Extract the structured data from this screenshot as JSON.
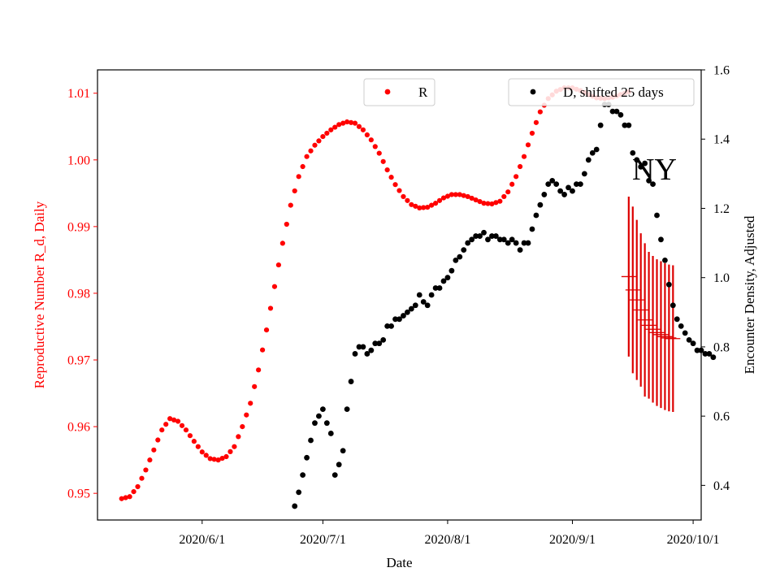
{
  "chart_data": {
    "type": "scatter",
    "annotation": "NY",
    "xlabel": "Date",
    "x_ticks": [
      "2020/6/1",
      "2020/7/1",
      "2020/8/1",
      "2020/9/1",
      "2020/10/1"
    ],
    "xlim": [
      "2020-05-06",
      "2020-10-03"
    ],
    "y_left": {
      "label": "Reproductive Number R_d, Daily",
      "color": "#ff0000",
      "ylim": [
        0.946,
        1.0135
      ],
      "ticks": [
        "0.95",
        "0.96",
        "0.97",
        "0.98",
        "0.99",
        "1.00",
        "1.01"
      ]
    },
    "y_right": {
      "label": "Encounter Density, Adjusted",
      "color": "#000000",
      "ylim": [
        0.3,
        1.6
      ],
      "ticks": [
        "0.4",
        "0.6",
        "0.8",
        "1.0",
        "1.2",
        "1.4",
        "1.6"
      ]
    },
    "legend": {
      "R": {
        "label": "R",
        "position": "top-center"
      },
      "D": {
        "label": "D, shifted 25 days",
        "position": "top-right"
      }
    },
    "colors": {
      "R": "#ff0000",
      "D": "#000000",
      "error": "#dd0000"
    },
    "series_R": {
      "name": "R",
      "axis": "left",
      "start_date": "2020-05-12",
      "end_date": "2020-09-15",
      "control_points": [
        [
          "2020-05-12",
          0.9492
        ],
        [
          "2020-05-14",
          0.9495
        ],
        [
          "2020-05-16",
          0.951
        ],
        [
          "2020-05-18",
          0.9535
        ],
        [
          "2020-05-20",
          0.9565
        ],
        [
          "2020-05-22",
          0.9595
        ],
        [
          "2020-05-24",
          0.9612
        ],
        [
          "2020-05-26",
          0.9608
        ],
        [
          "2020-05-28",
          0.9595
        ],
        [
          "2020-05-30",
          0.9578
        ],
        [
          "2020-06-01",
          0.9562
        ],
        [
          "2020-06-03",
          0.9552
        ],
        [
          "2020-06-05",
          0.955
        ],
        [
          "2020-06-07",
          0.9555
        ],
        [
          "2020-06-09",
          0.957
        ],
        [
          "2020-06-11",
          0.96
        ],
        [
          "2020-06-13",
          0.9635
        ],
        [
          "2020-06-15",
          0.9685
        ],
        [
          "2020-06-17",
          0.9745
        ],
        [
          "2020-06-19",
          0.981
        ],
        [
          "2020-06-21",
          0.9875
        ],
        [
          "2020-06-23",
          0.9932
        ],
        [
          "2020-06-25",
          0.9975
        ],
        [
          "2020-06-27",
          1.0005
        ],
        [
          "2020-06-29",
          1.0022
        ],
        [
          "2020-07-01",
          1.0035
        ],
        [
          "2020-07-03",
          1.0045
        ],
        [
          "2020-07-05",
          1.0053
        ],
        [
          "2020-07-07",
          1.0057
        ],
        [
          "2020-07-09",
          1.0055
        ],
        [
          "2020-07-11",
          1.0045
        ],
        [
          "2020-07-13",
          1.003
        ],
        [
          "2020-07-15",
          1.001
        ],
        [
          "2020-07-17",
          0.9985
        ],
        [
          "2020-07-19",
          0.9963
        ],
        [
          "2020-07-21",
          0.9945
        ],
        [
          "2020-07-23",
          0.9933
        ],
        [
          "2020-07-25",
          0.9928
        ],
        [
          "2020-07-27",
          0.9929
        ],
        [
          "2020-07-29",
          0.9935
        ],
        [
          "2020-07-31",
          0.9943
        ],
        [
          "2020-08-02",
          0.9948
        ],
        [
          "2020-08-04",
          0.9948
        ],
        [
          "2020-08-06",
          0.9945
        ],
        [
          "2020-08-08",
          0.994
        ],
        [
          "2020-08-10",
          0.9935
        ],
        [
          "2020-08-12",
          0.9934
        ],
        [
          "2020-08-14",
          0.9938
        ],
        [
          "2020-08-16",
          0.9952
        ],
        [
          "2020-08-18",
          0.9975
        ],
        [
          "2020-08-20",
          1.0005
        ],
        [
          "2020-08-22",
          1.004
        ],
        [
          "2020-08-24",
          1.0072
        ],
        [
          "2020-08-26",
          1.0092
        ],
        [
          "2020-08-28",
          1.0103
        ],
        [
          "2020-08-30",
          1.0108
        ],
        [
          "2020-09-01",
          1.0108
        ],
        [
          "2020-09-03",
          1.0104
        ],
        [
          "2020-09-05",
          1.0098
        ],
        [
          "2020-09-07",
          1.0093
        ],
        [
          "2020-09-09",
          1.0092
        ],
        [
          "2020-09-11",
          1.0094
        ],
        [
          "2020-09-13",
          1.0098
        ],
        [
          "2020-09-15",
          1.0102
        ]
      ]
    },
    "series_D": {
      "name": "D, shifted 25 days",
      "axis": "right",
      "points": [
        [
          "2020-06-24",
          0.34
        ],
        [
          "2020-06-25",
          0.38
        ],
        [
          "2020-06-26",
          0.43
        ],
        [
          "2020-06-27",
          0.48
        ],
        [
          "2020-06-28",
          0.53
        ],
        [
          "2020-06-29",
          0.58
        ],
        [
          "2020-06-30",
          0.6
        ],
        [
          "2020-07-01",
          0.62
        ],
        [
          "2020-07-02",
          0.58
        ],
        [
          "2020-07-03",
          0.55
        ],
        [
          "2020-07-04",
          0.43
        ],
        [
          "2020-07-05",
          0.46
        ],
        [
          "2020-07-06",
          0.5
        ],
        [
          "2020-07-07",
          0.62
        ],
        [
          "2020-07-08",
          0.7
        ],
        [
          "2020-07-09",
          0.78
        ],
        [
          "2020-07-10",
          0.8
        ],
        [
          "2020-07-11",
          0.8
        ],
        [
          "2020-07-12",
          0.78
        ],
        [
          "2020-07-13",
          0.79
        ],
        [
          "2020-07-14",
          0.81
        ],
        [
          "2020-07-15",
          0.81
        ],
        [
          "2020-07-16",
          0.82
        ],
        [
          "2020-07-17",
          0.86
        ],
        [
          "2020-07-18",
          0.86
        ],
        [
          "2020-07-19",
          0.88
        ],
        [
          "2020-07-20",
          0.88
        ],
        [
          "2020-07-21",
          0.89
        ],
        [
          "2020-07-22",
          0.9
        ],
        [
          "2020-07-23",
          0.91
        ],
        [
          "2020-07-24",
          0.92
        ],
        [
          "2020-07-25",
          0.95
        ],
        [
          "2020-07-26",
          0.93
        ],
        [
          "2020-07-27",
          0.92
        ],
        [
          "2020-07-28",
          0.95
        ],
        [
          "2020-07-29",
          0.97
        ],
        [
          "2020-07-30",
          0.97
        ],
        [
          "2020-07-31",
          0.99
        ],
        [
          "2020-08-01",
          1.0
        ],
        [
          "2020-08-02",
          1.02
        ],
        [
          "2020-08-03",
          1.05
        ],
        [
          "2020-08-04",
          1.06
        ],
        [
          "2020-08-05",
          1.08
        ],
        [
          "2020-08-06",
          1.1
        ],
        [
          "2020-08-07",
          1.11
        ],
        [
          "2020-08-08",
          1.12
        ],
        [
          "2020-08-09",
          1.12
        ],
        [
          "2020-08-10",
          1.13
        ],
        [
          "2020-08-11",
          1.11
        ],
        [
          "2020-08-12",
          1.12
        ],
        [
          "2020-08-13",
          1.12
        ],
        [
          "2020-08-14",
          1.11
        ],
        [
          "2020-08-15",
          1.11
        ],
        [
          "2020-08-16",
          1.1
        ],
        [
          "2020-08-17",
          1.11
        ],
        [
          "2020-08-18",
          1.1
        ],
        [
          "2020-08-19",
          1.08
        ],
        [
          "2020-08-20",
          1.1
        ],
        [
          "2020-08-21",
          1.1
        ],
        [
          "2020-08-22",
          1.14
        ],
        [
          "2020-08-23",
          1.18
        ],
        [
          "2020-08-24",
          1.21
        ],
        [
          "2020-08-25",
          1.24
        ],
        [
          "2020-08-26",
          1.27
        ],
        [
          "2020-08-27",
          1.28
        ],
        [
          "2020-08-28",
          1.27
        ],
        [
          "2020-08-29",
          1.25
        ],
        [
          "2020-08-30",
          1.24
        ],
        [
          "2020-08-31",
          1.26
        ],
        [
          "2020-09-01",
          1.25
        ],
        [
          "2020-09-02",
          1.27
        ],
        [
          "2020-09-03",
          1.27
        ],
        [
          "2020-09-04",
          1.3
        ],
        [
          "2020-09-05",
          1.34
        ],
        [
          "2020-09-06",
          1.36
        ],
        [
          "2020-09-07",
          1.37
        ],
        [
          "2020-09-08",
          1.44
        ],
        [
          "2020-09-09",
          1.5
        ],
        [
          "2020-09-10",
          1.5
        ],
        [
          "2020-09-11",
          1.48
        ],
        [
          "2020-09-12",
          1.48
        ],
        [
          "2020-09-13",
          1.47
        ],
        [
          "2020-09-14",
          1.44
        ],
        [
          "2020-09-15",
          1.44
        ],
        [
          "2020-09-16",
          1.36
        ],
        [
          "2020-09-17",
          1.34
        ],
        [
          "2020-09-18",
          1.32
        ],
        [
          "2020-09-19",
          1.33
        ],
        [
          "2020-09-20",
          1.28
        ],
        [
          "2020-09-21",
          1.27
        ],
        [
          "2020-09-22",
          1.18
        ],
        [
          "2020-09-23",
          1.11
        ],
        [
          "2020-09-24",
          1.05
        ],
        [
          "2020-09-25",
          0.98
        ],
        [
          "2020-09-26",
          0.92
        ],
        [
          "2020-09-27",
          0.88
        ],
        [
          "2020-09-28",
          0.86
        ],
        [
          "2020-09-29",
          0.84
        ],
        [
          "2020-09-30",
          0.82
        ],
        [
          "2020-10-01",
          0.81
        ],
        [
          "2020-10-02",
          0.79
        ],
        [
          "2020-10-03",
          0.79
        ],
        [
          "2020-10-04",
          0.78
        ],
        [
          "2020-10-05",
          0.78
        ],
        [
          "2020-10-06",
          0.77
        ]
      ]
    },
    "error_bars": {
      "axis": "left",
      "points": [
        [
          "2020-09-15",
          0.9825,
          0.012
        ],
        [
          "2020-09-16",
          0.9805,
          0.0125
        ],
        [
          "2020-09-17",
          0.979,
          0.012
        ],
        [
          "2020-09-18",
          0.9775,
          0.0115
        ],
        [
          "2020-09-19",
          0.976,
          0.0115
        ],
        [
          "2020-09-20",
          0.9752,
          0.011
        ],
        [
          "2020-09-21",
          0.9746,
          0.011
        ],
        [
          "2020-09-22",
          0.9741,
          0.011
        ],
        [
          "2020-09-23",
          0.9738,
          0.011
        ],
        [
          "2020-09-24",
          0.9735,
          0.011
        ],
        [
          "2020-09-25",
          0.9733,
          0.011
        ],
        [
          "2020-09-26",
          0.9732,
          0.011
        ]
      ]
    }
  }
}
